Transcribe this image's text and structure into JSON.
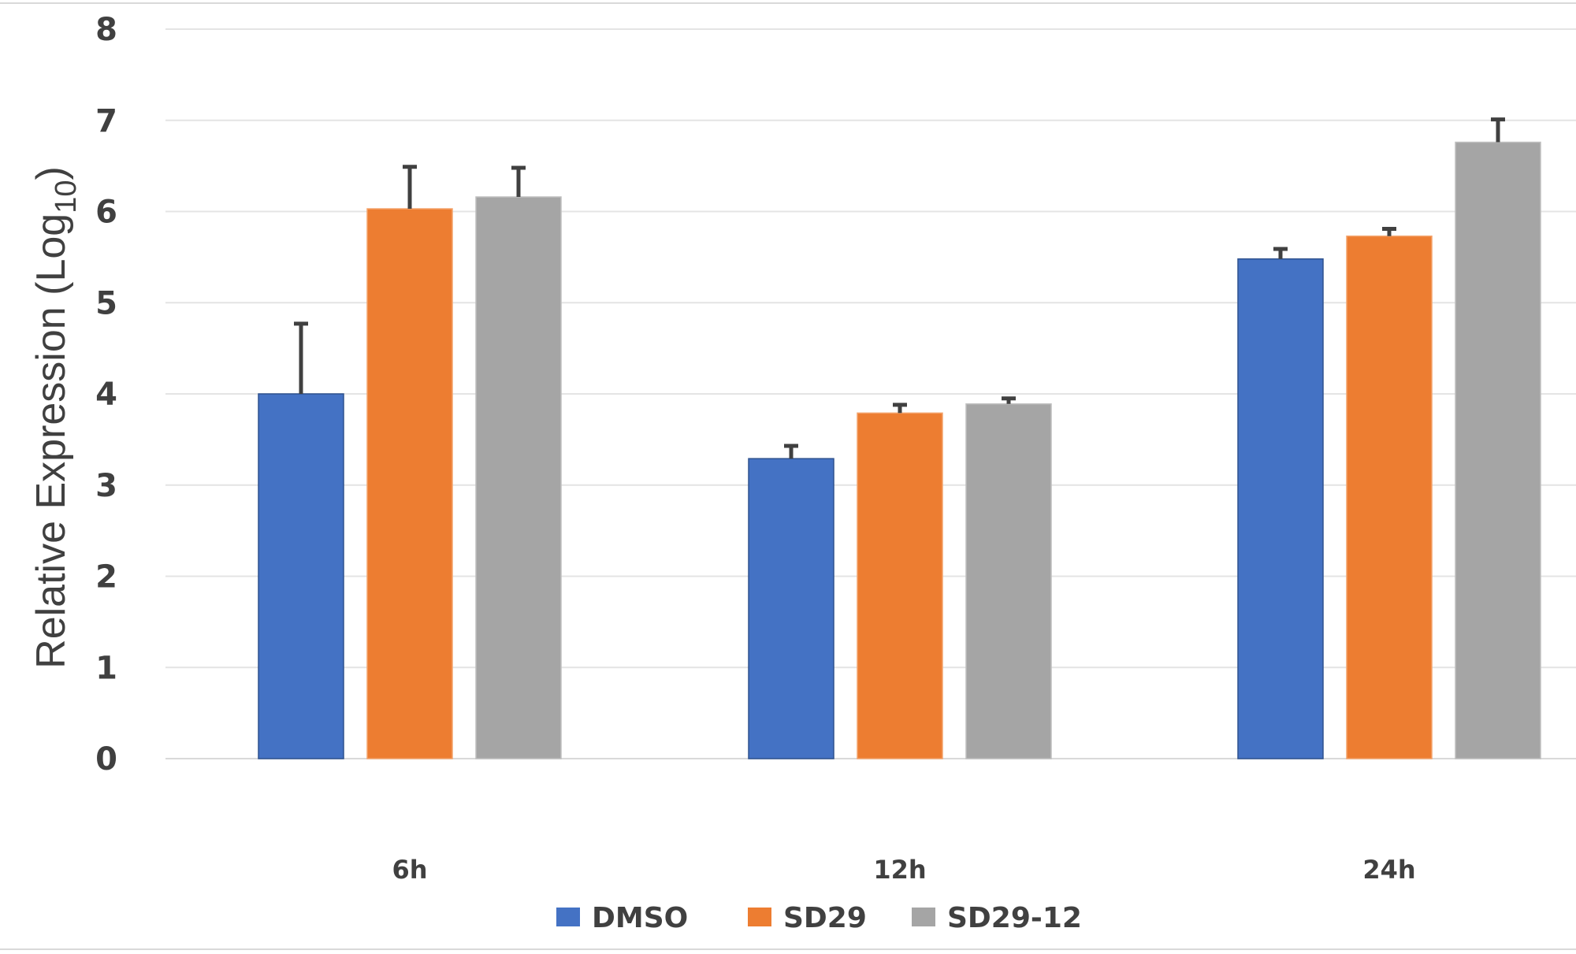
{
  "chart_data": {
    "type": "bar",
    "title": "",
    "xlabel": "",
    "ylabel": "Relative Expression (Log",
    "ylabel_subscript": "10",
    "ylabel_close": ")",
    "ylim": [
      0,
      8
    ],
    "yticks": [
      "0",
      "1",
      "2",
      "3",
      "4",
      "5",
      "6",
      "7",
      "8"
    ],
    "grid": true,
    "legend_position": "bottom",
    "categories": [
      "6h",
      "12h",
      "24h"
    ],
    "series": [
      {
        "name": "DMSO",
        "color": "#4472C4",
        "values": [
          4.0,
          3.29,
          5.48
        ],
        "errors": [
          0.77,
          0.14,
          0.11
        ]
      },
      {
        "name": "SD29",
        "color": "#ED7D31",
        "values": [
          6.03,
          3.79,
          5.73
        ],
        "errors": [
          0.46,
          0.09,
          0.08
        ]
      },
      {
        "name": "SD29-12",
        "color": "#A5A5A5",
        "values": [
          6.16,
          3.89,
          6.76
        ],
        "errors": [
          0.32,
          0.06,
          0.25
        ]
      }
    ]
  }
}
